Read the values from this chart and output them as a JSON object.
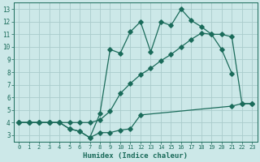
{
  "title": "",
  "xlabel": "Humidex (Indice chaleur)",
  "ylabel": "",
  "bg_color": "#cce8e8",
  "grid_color": "#aacccc",
  "line_color": "#1a6b5a",
  "xlim": [
    -0.5,
    23.5
  ],
  "ylim": [
    2.5,
    13.5
  ],
  "xticks": [
    0,
    1,
    2,
    3,
    4,
    5,
    6,
    7,
    8,
    9,
    10,
    11,
    12,
    13,
    14,
    15,
    16,
    17,
    18,
    19,
    20,
    21,
    22,
    23
  ],
  "yticks": [
    3,
    4,
    5,
    6,
    7,
    8,
    9,
    10,
    11,
    12,
    13
  ],
  "line1_x": [
    0,
    1,
    2,
    3,
    4,
    5,
    6,
    7,
    8,
    9,
    10,
    11,
    12,
    13,
    14,
    15,
    16,
    17,
    18,
    19,
    20,
    21
  ],
  "line1_y": [
    4.0,
    4.0,
    4.0,
    4.0,
    4.0,
    3.5,
    3.3,
    2.8,
    4.7,
    9.8,
    9.5,
    11.2,
    12.0,
    9.6,
    12.0,
    11.7,
    13.0,
    12.1,
    11.6,
    11.0,
    9.8,
    7.9
  ],
  "line2_x": [
    0,
    1,
    2,
    3,
    4,
    5,
    6,
    7,
    8,
    9,
    10,
    11,
    12,
    21,
    22,
    23
  ],
  "line2_y": [
    4.0,
    4.0,
    4.0,
    4.0,
    4.0,
    3.5,
    3.3,
    2.8,
    3.2,
    3.2,
    3.4,
    3.5,
    4.6,
    5.3,
    5.5,
    5.5
  ],
  "line3_x": [
    0,
    1,
    2,
    3,
    4,
    5,
    6,
    7,
    8,
    9,
    10,
    11,
    12,
    13,
    14,
    15,
    16,
    17,
    18,
    19,
    20,
    21,
    22,
    23
  ],
  "line3_y": [
    4.0,
    4.0,
    4.0,
    4.0,
    4.0,
    4.0,
    4.0,
    4.0,
    4.2,
    4.9,
    6.3,
    7.1,
    7.8,
    8.3,
    8.9,
    9.4,
    10.0,
    10.6,
    11.1,
    11.0,
    11.0,
    10.8,
    5.5,
    5.5
  ]
}
